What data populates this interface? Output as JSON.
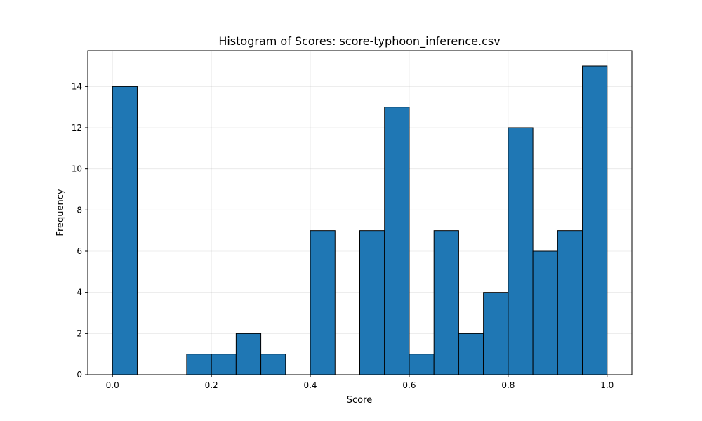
{
  "chart_data": {
    "type": "bar",
    "title": "Histogram of Scores: score-typhoon_inference.csv",
    "xlabel": "Score",
    "ylabel": "Frequency",
    "bin_edges": [
      0.0,
      0.05,
      0.1,
      0.15,
      0.2,
      0.25,
      0.3,
      0.35,
      0.4,
      0.45,
      0.5,
      0.55,
      0.6,
      0.65,
      0.7,
      0.75,
      0.8,
      0.85,
      0.9,
      0.95,
      1.0
    ],
    "values": [
      14,
      0,
      0,
      1,
      1,
      2,
      1,
      0,
      7,
      0,
      7,
      13,
      1,
      7,
      2,
      4,
      12,
      6,
      7,
      15
    ],
    "xlim": [
      -0.05,
      1.05
    ],
    "ylim": [
      0,
      15.75
    ],
    "x_ticks": [
      0.0,
      0.2,
      0.4,
      0.6,
      0.8,
      1.0
    ],
    "x_tick_labels": [
      "0.0",
      "0.2",
      "0.4",
      "0.6",
      "0.8",
      "1.0"
    ],
    "y_ticks": [
      0,
      2,
      4,
      6,
      8,
      10,
      12,
      14
    ],
    "y_tick_labels": [
      "0",
      "2",
      "4",
      "6",
      "8",
      "10",
      "12",
      "14"
    ],
    "grid": true,
    "bar_color": "#1f77b4",
    "edge_color": "#000000"
  }
}
